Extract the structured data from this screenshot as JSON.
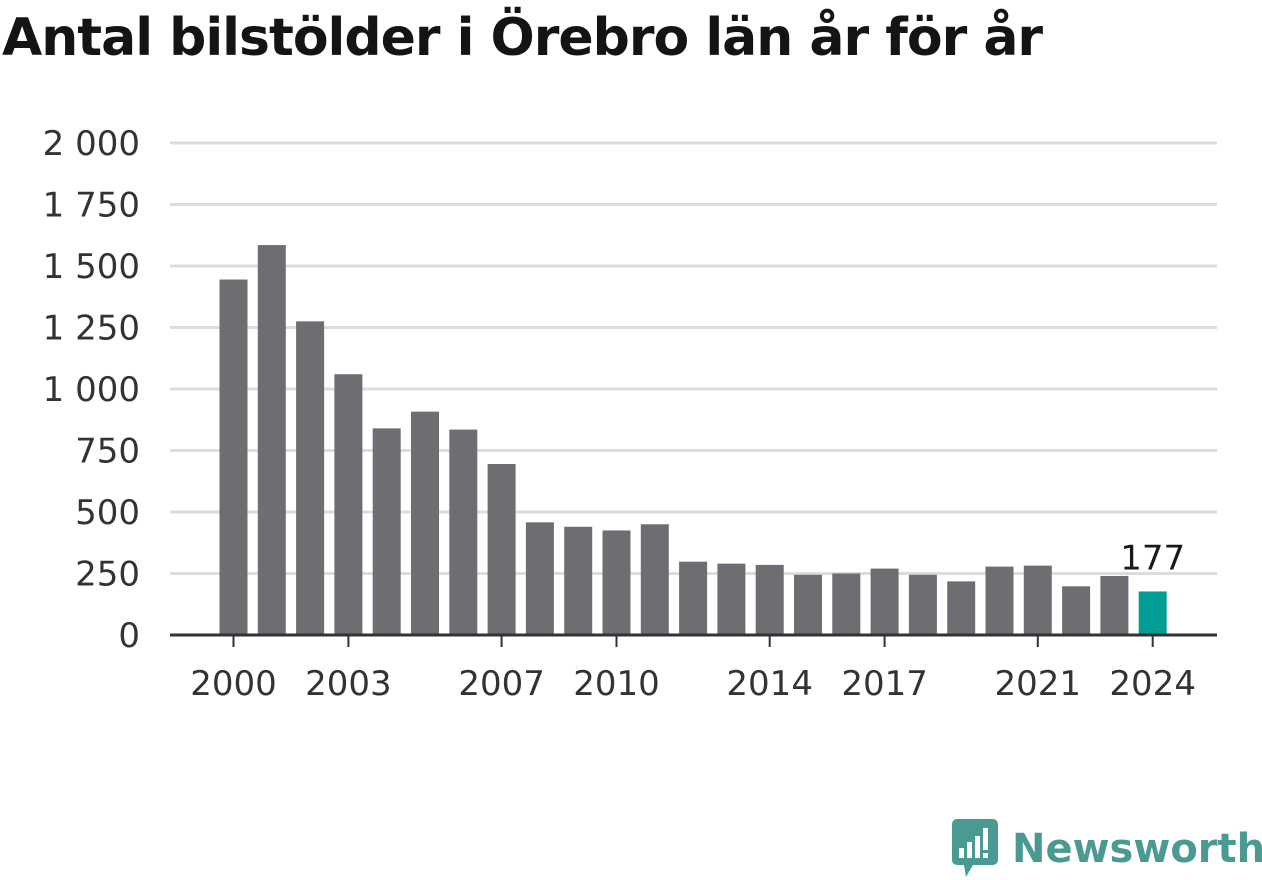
{
  "title": "Antal bilstölder i Örebro län år för år",
  "brand": {
    "name": "Newsworthy",
    "logo_icon": "newsworthy-chart-bubble-icon"
  },
  "colors": {
    "bar": "#6d6d72",
    "highlight": "#009e94",
    "grid": "#dcdcdc",
    "axis": "#333333",
    "brand": "#4a9a93"
  },
  "chart_data": {
    "type": "bar",
    "title": "Antal bilstölder i Örebro län år för år",
    "categories": [
      "2000",
      "2001",
      "2002",
      "2003",
      "2004",
      "2005",
      "2006",
      "2007",
      "2008",
      "2009",
      "2010",
      "2011",
      "2012",
      "2013",
      "2014",
      "2015",
      "2016",
      "2017",
      "2018",
      "2019",
      "2020",
      "2021",
      "2022",
      "2023",
      "2024"
    ],
    "values": [
      1445,
      1585,
      1275,
      1060,
      840,
      908,
      835,
      695,
      458,
      440,
      425,
      450,
      298,
      290,
      285,
      245,
      250,
      270,
      245,
      218,
      278,
      282,
      198,
      240,
      177
    ],
    "highlight_index": 24,
    "data_labels": [
      {
        "index": 24,
        "text": "177"
      }
    ],
    "x_tick_labels": [
      "2000",
      "2003",
      "2007",
      "2010",
      "2014",
      "2017",
      "2021",
      "2024"
    ],
    "y_ticks": [
      0,
      250,
      500,
      750,
      1000,
      1250,
      1500,
      1750,
      2000
    ],
    "y_tick_labels": [
      "0",
      "250",
      "500",
      "750",
      "1 000",
      "1 250",
      "1 500",
      "1 750",
      "2 000"
    ],
    "ylim": [
      0,
      2000
    ],
    "xlabel": "",
    "ylabel": "",
    "grid": true,
    "legend": "none"
  }
}
